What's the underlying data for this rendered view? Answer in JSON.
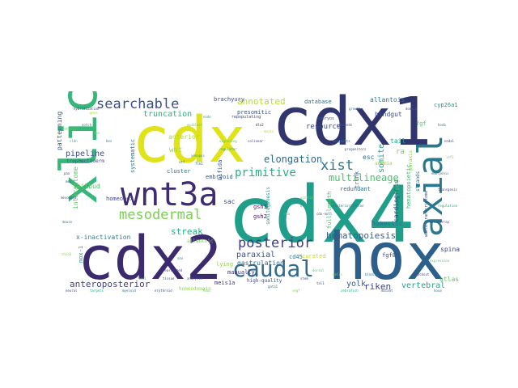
{
  "words": [
    {
      "t": "cdx4",
      "c": "#1f9e89"
    },
    {
      "t": "cdx1",
      "c": "#31356e"
    },
    {
      "t": "cdx2",
      "c": "#3b2a6e"
    },
    {
      "t": "cdx",
      "c": "#dfe318"
    },
    {
      "t": "hox",
      "c": "#2c5f8a"
    },
    {
      "t": "xlic",
      "c": "#35b779"
    },
    {
      "t": "wnt3a",
      "c": "#3e2b72"
    },
    {
      "t": "axial",
      "c": "#2a788e"
    },
    {
      "t": "caudal",
      "c": "#306a8e"
    },
    {
      "t": "posterior",
      "c": "#3d3d84"
    },
    {
      "t": "mesodermal",
      "c": "#7ad151"
    },
    {
      "t": "searchable",
      "c": "#3b4f8a"
    },
    {
      "t": "xist",
      "c": "#2a768e"
    },
    {
      "t": "primitive",
      "c": "#29af7f"
    },
    {
      "t": "elongation",
      "c": "#30688e"
    },
    {
      "t": "multilineage",
      "c": "#4ac16d"
    },
    {
      "t": "hematopoiesis",
      "c": "#355f8d"
    },
    {
      "t": "anteroposterior",
      "c": "#404387"
    },
    {
      "t": "annotated",
      "c": "#b5de2b"
    },
    {
      "t": "streak",
      "c": "#29af7f"
    },
    {
      "t": "paraxial",
      "c": "#3b528b"
    },
    {
      "t": "riken",
      "c": "#424186"
    },
    {
      "t": "yolk",
      "c": "#365c8d"
    },
    {
      "t": "vertebral",
      "c": "#22a785"
    },
    {
      "t": "truncation",
      "c": "#2db27d"
    },
    {
      "t": "resource",
      "c": "#3e4989"
    },
    {
      "t": "somite",
      "c": "#1fa088"
    },
    {
      "t": "pipeline",
      "c": "#3e4c8a"
    },
    {
      "t": "homeobox",
      "c": "#3f4788"
    },
    {
      "t": "anterior",
      "c": "#a8db34"
    },
    {
      "t": "wnt",
      "c": "#9dd93b"
    },
    {
      "t": "presomitic",
      "c": "#3a548c"
    },
    {
      "t": "allantois",
      "c": "#2a778e"
    },
    {
      "t": "database",
      "c": "#2d708e"
    },
    {
      "t": "hindgut",
      "c": "#3e4a89"
    },
    {
      "t": "cyp26a1",
      "c": "#1f958b"
    },
    {
      "t": "tail",
      "c": "#22a884"
    },
    {
      "t": "esc",
      "c": "#2e6e8e"
    },
    {
      "t": "ra",
      "c": "#75d054"
    },
    {
      "t": "cardiogenic",
      "c": "#3f4889"
    },
    {
      "t": "homeotic",
      "c": "#2f6b8e"
    },
    {
      "t": "gsh1",
      "c": "#481f70"
    },
    {
      "t": "gsh2",
      "c": "#471365"
    },
    {
      "t": "sac",
      "c": "#3c508b"
    },
    {
      "t": "curated",
      "c": "#c0df25"
    },
    {
      "t": "redundant",
      "c": "#2e6f8e"
    },
    {
      "t": "brachyury",
      "c": "#3e4a89"
    },
    {
      "t": "gastrulation",
      "c": "#31688e"
    },
    {
      "t": "lying",
      "c": "#8bd646"
    },
    {
      "t": "meis1a",
      "c": "#46327e"
    },
    {
      "t": "homeodomain",
      "c": "#8fd744"
    },
    {
      "t": "fgf8",
      "c": "#433e85"
    },
    {
      "t": "cd45",
      "c": "#2c738e"
    },
    {
      "t": "spina",
      "c": "#3f4889"
    },
    {
      "t": "atlas",
      "c": "#5ec962"
    },
    {
      "t": "bifida",
      "c": "#3a538b"
    },
    {
      "t": "embryoid",
      "c": "#37598c"
    },
    {
      "t": "cluster",
      "c": "#2c728e"
    },
    {
      "t": "interactome",
      "c": "#5cc863"
    },
    {
      "t": "tailbud",
      "c": "#55c667"
    },
    {
      "t": "x-inactivation",
      "c": "#25838e"
    },
    {
      "t": "patterning",
      "c": "#38588c"
    },
    {
      "t": "systematic",
      "c": "#2b748e"
    },
    {
      "t": "trophectoderm",
      "c": "#3c4f8a"
    },
    {
      "t": "mox-1",
      "c": "#1e9b8a"
    },
    {
      "t": "manually",
      "c": "#453781"
    },
    {
      "t": "high-quality",
      "c": "#3e4989"
    },
    {
      "t": "full-length",
      "c": "#4ac16d"
    },
    {
      "t": "allantoic",
      "c": "#7ad151"
    },
    {
      "t": "trunk",
      "c": "#33638d"
    },
    {
      "t": "fgf",
      "c": "#52c569"
    },
    {
      "t": "anemia",
      "c": "#90d743"
    },
    {
      "t": "somitogenesis",
      "c": "#21918c"
    },
    {
      "t": "hematopoietic",
      "c": "#3aba76"
    },
    {
      "t": "paraxis",
      "c": "#7fd34e"
    },
    {
      "t": "strands",
      "c": "#2e6e8e"
    },
    {
      "t": "whole-transcriptome",
      "c": "#3b528b"
    },
    {
      "t": "ergene",
      "c": "#4ac16d"
    },
    {
      "t": "embryos",
      "c": "#3b528b"
    },
    {
      "t": "repopulating",
      "c": "#3e4989"
    },
    {
      "t": "dlx2",
      "c": "#440154"
    },
    {
      "t": "marks",
      "c": "#b8de29"
    },
    {
      "t": "flk1",
      "c": "#2c728e"
    },
    {
      "t": "xenopus",
      "c": "#22a884"
    },
    {
      "t": "atf",
      "c": "#2c728e"
    },
    {
      "t": "proceeds",
      "c": "#3b528b"
    },
    {
      "t": "rearranged",
      "c": "#433e85"
    },
    {
      "t": "dorsal",
      "c": "#52c569"
    },
    {
      "t": "sox",
      "c": "#2a788e"
    },
    {
      "t": "hybridization",
      "c": "#414487"
    },
    {
      "t": "gene",
      "c": "#a0da39"
    },
    {
      "t": "notch",
      "c": "#2a788e"
    },
    {
      "t": "tbx",
      "c": "#7ad151"
    },
    {
      "t": "hes",
      "c": "#2c728e"
    },
    {
      "t": "pax",
      "c": "#414487"
    },
    {
      "t": "msx",
      "c": "#3b528b"
    },
    {
      "t": "retinoic",
      "c": "#5ec962"
    },
    {
      "t": "cldn",
      "c": "#22a884"
    },
    {
      "t": "hoxb",
      "c": "#2c728e"
    },
    {
      "t": "nodal",
      "c": "#414487"
    },
    {
      "t": "lef1",
      "c": "#7ad151"
    },
    {
      "t": "embryonic",
      "c": "#2a788e"
    },
    {
      "t": "transgenic",
      "c": "#3b528b"
    },
    {
      "t": "regulation",
      "c": "#22a884"
    },
    {
      "t": "microarray",
      "c": "#414487"
    },
    {
      "t": "expression",
      "c": "#5ec962"
    },
    {
      "t": "hoxa",
      "c": "#2c728e"
    },
    {
      "t": "mutant",
      "c": "#3b528b"
    },
    {
      "t": "zebrafish",
      "c": "#22a884"
    },
    {
      "t": "vegf",
      "c": "#7ad151"
    },
    {
      "t": "tal1",
      "c": "#414487"
    },
    {
      "t": "gata1",
      "c": "#2a788e"
    },
    {
      "t": "hoxc",
      "c": "#5ec962"
    },
    {
      "t": "erythroid",
      "c": "#3b528b"
    },
    {
      "t": "myeloid",
      "c": "#2c728e"
    },
    {
      "t": "targets",
      "c": "#22a884"
    },
    {
      "t": "neural",
      "c": "#414487"
    },
    {
      "t": "chick",
      "c": "#7ad151"
    },
    {
      "t": "mouse",
      "c": "#2a788e"
    },
    {
      "t": "mesoderm",
      "c": "#3b528b"
    },
    {
      "t": "signaling",
      "c": "#5ec962"
    },
    {
      "t": "regulator",
      "c": "#22a884"
    },
    {
      "t": "colinear",
      "c": "#414487"
    },
    {
      "t": "morphants",
      "c": "#2c728e"
    },
    {
      "t": "progenitors",
      "c": "#3b528b"
    },
    {
      "t": "ventral",
      "c": "#7ad151"
    },
    {
      "t": "blood",
      "c": "#22a884"
    },
    {
      "t": "cdx-null",
      "c": "#414487"
    },
    {
      "t": "posteriorization",
      "c": "#2a788e"
    },
    {
      "t": "rna",
      "c": "#5ec962"
    },
    {
      "t": "tissue",
      "c": "#3b528b"
    },
    {
      "t": "analysis",
      "c": "#2c728e"
    },
    {
      "t": "loci",
      "c": "#22a884"
    },
    {
      "t": "stem",
      "c": "#414487"
    },
    {
      "t": "cells",
      "c": "#7ad151"
    },
    {
      "t": "binding",
      "c": "#2a788e"
    },
    {
      "t": "knockout",
      "c": "#3b528b"
    },
    {
      "t": "epiblast",
      "c": "#5ec962"
    },
    {
      "t": "node",
      "c": "#22a884"
    },
    {
      "t": "fate",
      "c": "#414487"
    },
    {
      "t": "growth",
      "c": "#2c728e"
    },
    {
      "t": "domain",
      "c": "#3b528b"
    }
  ]
}
